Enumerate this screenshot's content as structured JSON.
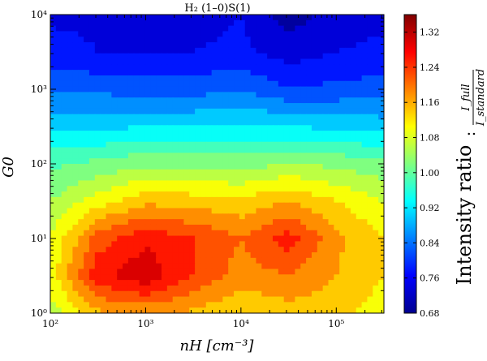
{
  "chart_data": {
    "type": "contour",
    "title": "H₂ (1–0)S(1)",
    "xlabel": "nH [cm⁻³]",
    "ylabel": "G0",
    "x_scale": "log",
    "y_scale": "log",
    "xlim": [
      100,
      316228
    ],
    "ylim": [
      1,
      10000
    ],
    "x_ticks": [
      {
        "v": 100,
        "label": "10²"
      },
      {
        "v": 1000,
        "label": "10³"
      },
      {
        "v": 10000,
        "label": "10⁴"
      },
      {
        "v": 100000,
        "label": "10⁵"
      }
    ],
    "y_ticks": [
      {
        "v": 1,
        "label": "10⁰"
      },
      {
        "v": 10,
        "label": "10¹"
      },
      {
        "v": 100,
        "label": "10²"
      },
      {
        "v": 1000,
        "label": "10³"
      },
      {
        "v": 10000,
        "label": "10⁴"
      }
    ],
    "grid_x": [
      100,
      316,
      1000,
      3162,
      10000,
      31623,
      100000,
      316228
    ],
    "grid_y": [
      1,
      3.16,
      10,
      31.6,
      100,
      316,
      1000,
      3162,
      10000
    ],
    "z": [
      [
        1.06,
        1.15,
        1.17,
        1.15,
        1.12,
        1.14,
        1.13,
        1.1
      ],
      [
        1.1,
        1.27,
        1.31,
        1.24,
        1.18,
        1.2,
        1.16,
        1.12
      ],
      [
        1.08,
        1.22,
        1.27,
        1.24,
        1.2,
        1.26,
        1.17,
        1.12
      ],
      [
        1.04,
        1.1,
        1.15,
        1.14,
        1.13,
        1.16,
        1.12,
        1.08
      ],
      [
        0.99,
        1.01,
        1.03,
        1.03,
        1.02,
        1.04,
        1.03,
        1.01
      ],
      [
        0.91,
        0.91,
        0.92,
        0.92,
        0.93,
        0.92,
        0.91,
        0.9
      ],
      [
        0.83,
        0.83,
        0.82,
        0.82,
        0.84,
        0.8,
        0.81,
        0.82
      ],
      [
        0.78,
        0.76,
        0.76,
        0.76,
        0.77,
        0.74,
        0.76,
        0.77
      ],
      [
        0.75,
        0.75,
        0.75,
        0.74,
        0.76,
        0.7,
        0.74,
        0.75
      ]
    ],
    "colorbar": {
      "label": "Intensity ratio",
      "ratio_numerator": "I_full",
      "ratio_denominator": "I_standard",
      "min": 0.68,
      "max": 1.36,
      "ticks": [
        "0.68",
        "0.76",
        "0.84",
        "0.92",
        "1.00",
        "1.08",
        "1.16",
        "1.24",
        "1.32"
      ],
      "colormap": "jet"
    }
  }
}
